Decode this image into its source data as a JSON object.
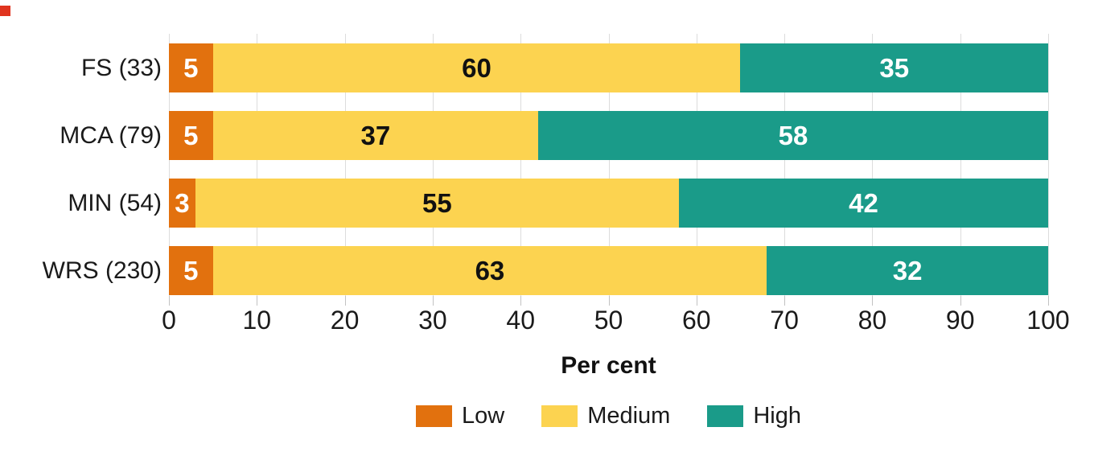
{
  "chart_data": {
    "type": "bar",
    "orientation": "horizontal",
    "stacked": true,
    "categories": [
      "FS (33)",
      "MCA (79)",
      "MIN (54)",
      "WRS (230)"
    ],
    "series": [
      {
        "name": "Low",
        "color": "#e2710e",
        "label_color": "#ffffff",
        "values": [
          5,
          5,
          3,
          5
        ]
      },
      {
        "name": "Medium",
        "color": "#fcd350",
        "label_color": "#111111",
        "values": [
          60,
          37,
          55,
          63
        ]
      },
      {
        "name": "High",
        "color": "#1a9b89",
        "label_color": "#ffffff",
        "values": [
          35,
          58,
          42,
          32
        ]
      }
    ],
    "title": "",
    "xlabel": "Per cent",
    "ylabel": "",
    "xlim": [
      0,
      100
    ],
    "xticks": [
      0,
      10,
      20,
      30,
      40,
      50,
      60,
      70,
      80,
      90,
      100
    ],
    "grid": true,
    "legend_position": "bottom",
    "legend_labels": [
      "Low",
      "Medium",
      "High"
    ]
  },
  "decor": {
    "corner_marker_color": "#e0341f",
    "gridline_color": "#dcdcdc",
    "tick_color": "#c2c2c2",
    "text_color": "#1a1a1a"
  }
}
